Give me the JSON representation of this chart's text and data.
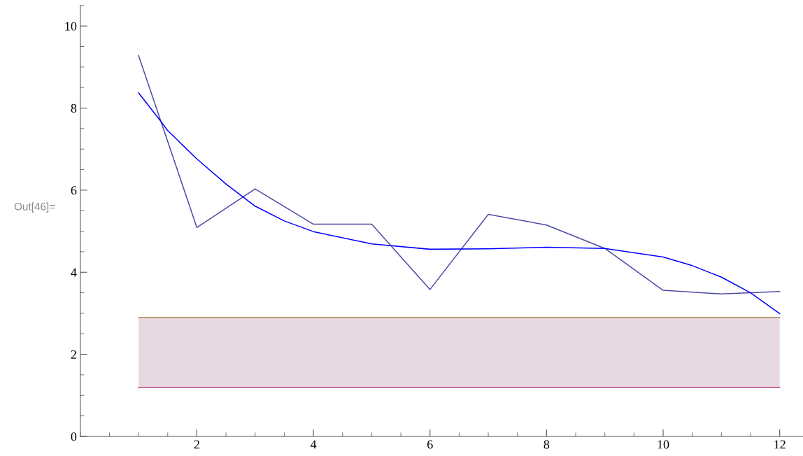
{
  "chart_data": {
    "type": "line",
    "series": [
      {
        "color": "#4b4ba8",
        "x": [
          1,
          2,
          3,
          4,
          5,
          6,
          7,
          8,
          9,
          10,
          11,
          12
        ],
        "values": [
          9.28,
          5.09,
          6.03,
          5.17,
          5.17,
          3.58,
          5.41,
          5.15,
          4.58,
          3.56,
          3.47,
          3.53
        ]
      },
      {
        "color": "#0000ff",
        "x": [
          1,
          1.38,
          1.5,
          2,
          2.5,
          3,
          3.5,
          4,
          5,
          6,
          7,
          8,
          9,
          10,
          10.5,
          11,
          11.5,
          12
        ],
        "values": [
          8.37,
          7.68,
          7.45,
          6.76,
          6.15,
          5.61,
          5.25,
          4.99,
          4.69,
          4.56,
          4.57,
          4.61,
          4.58,
          4.37,
          4.16,
          3.88,
          3.5,
          2.99
        ]
      },
      {
        "color": "#a08c50",
        "x": [
          1,
          12
        ],
        "values": [
          2.9,
          2.9
        ]
      },
      {
        "color": "#c0609a",
        "x": [
          1,
          12
        ],
        "values": [
          1.19,
          1.19
        ]
      }
    ],
    "bands": [
      {
        "axis": "y",
        "from": 1.19,
        "to": 2.9,
        "color": "#e8d8e2"
      }
    ],
    "xlim": [
      0,
      12.4
    ],
    "xticks": [
      2,
      4,
      6,
      8,
      10,
      12
    ],
    "ylim": [
      0,
      10.5
    ],
    "yticks": [
      0,
      2,
      4,
      6,
      8,
      10
    ],
    "grid": false,
    "legend": false,
    "marker": "none",
    "line_style": "solid",
    "annotations": [
      "Out[46]="
    ]
  }
}
